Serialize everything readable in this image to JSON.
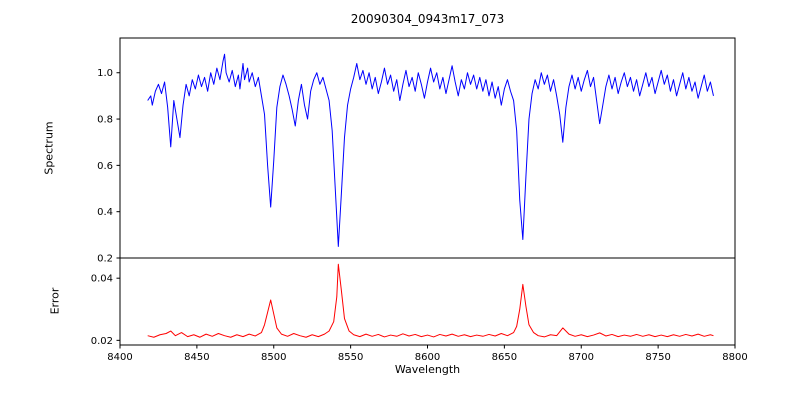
{
  "figure": {
    "title": "20090304_0943m17_073"
  },
  "chart_data": {
    "type": "line",
    "title": "20090304_0943m17_073",
    "xlabel": "Wavelength",
    "xlim": [
      8400,
      8800
    ],
    "xticks": [
      8400,
      8450,
      8500,
      8550,
      8600,
      8650,
      8700,
      8750,
      8800
    ],
    "xtick_labels": [
      "8400",
      "8450",
      "8500",
      "8550",
      "8600",
      "8650",
      "8700",
      "8750",
      "8800"
    ],
    "grid": false,
    "legend": "none",
    "subplots": [
      {
        "name": "spectrum",
        "ylabel": "Spectrum",
        "ylim": [
          0.2,
          1.15
        ],
        "yticks": [
          0.2,
          0.4,
          0.6,
          0.8,
          1.0
        ],
        "ytick_labels": [
          "0.2",
          "0.4",
          "0.6",
          "0.8",
          "1.0"
        ],
        "color": "#0000ff",
        "notes": "normalized stellar spectrum, continuum ~0.95, deep absorption lines (Ca II triplet) near 8498, 8542, 8662",
        "points": [
          [
            8418,
            0.88
          ],
          [
            8420,
            0.9
          ],
          [
            8421,
            0.86
          ],
          [
            8423,
            0.92
          ],
          [
            8425,
            0.95
          ],
          [
            8427,
            0.91
          ],
          [
            8429,
            0.96
          ],
          [
            8431,
            0.85
          ],
          [
            8433,
            0.68
          ],
          [
            8435,
            0.88
          ],
          [
            8437,
            0.8
          ],
          [
            8439,
            0.72
          ],
          [
            8441,
            0.86
          ],
          [
            8443,
            0.95
          ],
          [
            8445,
            0.9
          ],
          [
            8447,
            0.97
          ],
          [
            8449,
            0.93
          ],
          [
            8451,
            0.99
          ],
          [
            8453,
            0.94
          ],
          [
            8455,
            0.98
          ],
          [
            8457,
            0.92
          ],
          [
            8459,
            1.0
          ],
          [
            8461,
            0.95
          ],
          [
            8463,
            1.02
          ],
          [
            8465,
            0.97
          ],
          [
            8467,
            1.05
          ],
          [
            8468,
            1.08
          ],
          [
            8469,
            1.0
          ],
          [
            8471,
            0.96
          ],
          [
            8473,
            1.01
          ],
          [
            8475,
            0.94
          ],
          [
            8477,
            0.99
          ],
          [
            8478,
            0.93
          ],
          [
            8480,
            1.04
          ],
          [
            8481,
            0.97
          ],
          [
            8483,
            1.02
          ],
          [
            8484,
            0.96
          ],
          [
            8486,
            1.0
          ],
          [
            8488,
            0.94
          ],
          [
            8490,
            0.98
          ],
          [
            8492,
            0.9
          ],
          [
            8494,
            0.82
          ],
          [
            8496,
            0.6
          ],
          [
            8498,
            0.42
          ],
          [
            8500,
            0.62
          ],
          [
            8502,
            0.85
          ],
          [
            8504,
            0.94
          ],
          [
            8506,
            0.99
          ],
          [
            8508,
            0.95
          ],
          [
            8510,
            0.9
          ],
          [
            8512,
            0.84
          ],
          [
            8514,
            0.77
          ],
          [
            8516,
            0.88
          ],
          [
            8518,
            0.95
          ],
          [
            8520,
            0.86
          ],
          [
            8522,
            0.8
          ],
          [
            8524,
            0.92
          ],
          [
            8526,
            0.97
          ],
          [
            8528,
            1.0
          ],
          [
            8530,
            0.95
          ],
          [
            8532,
            0.98
          ],
          [
            8534,
            0.93
          ],
          [
            8536,
            0.88
          ],
          [
            8538,
            0.75
          ],
          [
            8540,
            0.5
          ],
          [
            8542,
            0.25
          ],
          [
            8544,
            0.48
          ],
          [
            8546,
            0.72
          ],
          [
            8548,
            0.86
          ],
          [
            8550,
            0.93
          ],
          [
            8552,
            0.98
          ],
          [
            8554,
            1.04
          ],
          [
            8556,
            0.97
          ],
          [
            8558,
            1.01
          ],
          [
            8560,
            0.95
          ],
          [
            8562,
            1.0
          ],
          [
            8564,
            0.93
          ],
          [
            8566,
            0.98
          ],
          [
            8568,
            0.91
          ],
          [
            8570,
            0.96
          ],
          [
            8572,
            1.02
          ],
          [
            8574,
            0.95
          ],
          [
            8576,
            0.99
          ],
          [
            8578,
            0.92
          ],
          [
            8580,
            0.97
          ],
          [
            8582,
            0.88
          ],
          [
            8584,
            0.95
          ],
          [
            8586,
            1.01
          ],
          [
            8588,
            0.94
          ],
          [
            8590,
            0.98
          ],
          [
            8592,
            0.92
          ],
          [
            8594,
            1.0
          ],
          [
            8596,
            0.95
          ],
          [
            8598,
            0.89
          ],
          [
            8600,
            0.96
          ],
          [
            8602,
            1.02
          ],
          [
            8604,
            0.96
          ],
          [
            8606,
            1.0
          ],
          [
            8608,
            0.93
          ],
          [
            8610,
            0.98
          ],
          [
            8612,
            0.91
          ],
          [
            8614,
            0.97
          ],
          [
            8616,
            1.03
          ],
          [
            8618,
            0.96
          ],
          [
            8620,
            0.9
          ],
          [
            8622,
            0.97
          ],
          [
            8624,
            0.93
          ],
          [
            8626,
            1.0
          ],
          [
            8628,
            0.95
          ],
          [
            8630,
            0.99
          ],
          [
            8632,
            0.93
          ],
          [
            8634,
            0.98
          ],
          [
            8636,
            0.92
          ],
          [
            8638,
            0.97
          ],
          [
            8640,
            0.9
          ],
          [
            8642,
            0.96
          ],
          [
            8644,
            0.89
          ],
          [
            8646,
            0.94
          ],
          [
            8648,
            0.86
          ],
          [
            8650,
            0.93
          ],
          [
            8652,
            0.97
          ],
          [
            8654,
            0.92
          ],
          [
            8656,
            0.88
          ],
          [
            8658,
            0.75
          ],
          [
            8660,
            0.45
          ],
          [
            8662,
            0.28
          ],
          [
            8664,
            0.55
          ],
          [
            8666,
            0.8
          ],
          [
            8668,
            0.91
          ],
          [
            8670,
            0.97
          ],
          [
            8672,
            0.93
          ],
          [
            8674,
            1.0
          ],
          [
            8676,
            0.95
          ],
          [
            8678,
            0.99
          ],
          [
            8680,
            0.92
          ],
          [
            8682,
            0.97
          ],
          [
            8684,
            0.9
          ],
          [
            8686,
            0.82
          ],
          [
            8688,
            0.7
          ],
          [
            8690,
            0.85
          ],
          [
            8692,
            0.94
          ],
          [
            8694,
            0.99
          ],
          [
            8696,
            0.93
          ],
          [
            8698,
            0.98
          ],
          [
            8700,
            0.92
          ],
          [
            8702,
            0.97
          ],
          [
            8704,
            1.01
          ],
          [
            8706,
            0.94
          ],
          [
            8708,
            0.98
          ],
          [
            8710,
            0.88
          ],
          [
            8712,
            0.78
          ],
          [
            8714,
            0.86
          ],
          [
            8716,
            0.94
          ],
          [
            8718,
            0.99
          ],
          [
            8720,
            0.93
          ],
          [
            8722,
            0.98
          ],
          [
            8724,
            0.91
          ],
          [
            8726,
            0.96
          ],
          [
            8728,
            1.0
          ],
          [
            8730,
            0.94
          ],
          [
            8732,
            0.98
          ],
          [
            8734,
            0.92
          ],
          [
            8736,
            0.97
          ],
          [
            8738,
            0.9
          ],
          [
            8740,
            0.95
          ],
          [
            8742,
            1.0
          ],
          [
            8744,
            0.94
          ],
          [
            8746,
            0.98
          ],
          [
            8748,
            0.91
          ],
          [
            8750,
            0.96
          ],
          [
            8752,
            1.01
          ],
          [
            8754,
            0.95
          ],
          [
            8756,
            0.99
          ],
          [
            8758,
            0.92
          ],
          [
            8760,
            0.97
          ],
          [
            8762,
            0.9
          ],
          [
            8764,
            0.95
          ],
          [
            8766,
            1.0
          ],
          [
            8768,
            0.93
          ],
          [
            8770,
            0.98
          ],
          [
            8772,
            0.92
          ],
          [
            8774,
            0.96
          ],
          [
            8776,
            0.89
          ],
          [
            8778,
            0.94
          ],
          [
            8780,
            0.99
          ],
          [
            8782,
            0.92
          ],
          [
            8784,
            0.96
          ],
          [
            8786,
            0.9
          ]
        ]
      },
      {
        "name": "error",
        "ylabel": "Error",
        "ylim": [
          0.0185,
          0.0465
        ],
        "yticks": [
          0.02,
          0.04
        ],
        "ytick_labels": [
          "0.02",
          "0.04"
        ],
        "color": "#ff0000",
        "notes": "error spectrum, baseline ~0.021 with peaks at the absorption lines 8498 (~0.033), 8542 (~0.0445), 8662 (~0.038)",
        "points": [
          [
            8418,
            0.0215
          ],
          [
            8422,
            0.021
          ],
          [
            8426,
            0.0218
          ],
          [
            8430,
            0.0222
          ],
          [
            8433,
            0.023
          ],
          [
            8436,
            0.0215
          ],
          [
            8440,
            0.0225
          ],
          [
            8444,
            0.0212
          ],
          [
            8448,
            0.0218
          ],
          [
            8452,
            0.021
          ],
          [
            8456,
            0.022
          ],
          [
            8460,
            0.0213
          ],
          [
            8464,
            0.0222
          ],
          [
            8468,
            0.0215
          ],
          [
            8472,
            0.021
          ],
          [
            8476,
            0.0218
          ],
          [
            8480,
            0.0212
          ],
          [
            8484,
            0.022
          ],
          [
            8488,
            0.0214
          ],
          [
            8492,
            0.0225
          ],
          [
            8494,
            0.025
          ],
          [
            8496,
            0.029
          ],
          [
            8498,
            0.033
          ],
          [
            8500,
            0.0285
          ],
          [
            8502,
            0.024
          ],
          [
            8505,
            0.022
          ],
          [
            8509,
            0.0213
          ],
          [
            8513,
            0.0222
          ],
          [
            8517,
            0.0215
          ],
          [
            8521,
            0.021
          ],
          [
            8525,
            0.0218
          ],
          [
            8529,
            0.0212
          ],
          [
            8533,
            0.022
          ],
          [
            8536,
            0.023
          ],
          [
            8539,
            0.026
          ],
          [
            8541,
            0.034
          ],
          [
            8542,
            0.0445
          ],
          [
            8544,
            0.036
          ],
          [
            8546,
            0.027
          ],
          [
            8549,
            0.023
          ],
          [
            8552,
            0.0218
          ],
          [
            8556,
            0.0212
          ],
          [
            8560,
            0.022
          ],
          [
            8564,
            0.0213
          ],
          [
            8568,
            0.0219
          ],
          [
            8572,
            0.0211
          ],
          [
            8576,
            0.0217
          ],
          [
            8580,
            0.0213
          ],
          [
            8584,
            0.0221
          ],
          [
            8588,
            0.0214
          ],
          [
            8592,
            0.0219
          ],
          [
            8596,
            0.0212
          ],
          [
            8600,
            0.0217
          ],
          [
            8604,
            0.0211
          ],
          [
            8608,
            0.0219
          ],
          [
            8612,
            0.0214
          ],
          [
            8616,
            0.022
          ],
          [
            8620,
            0.0213
          ],
          [
            8624,
            0.0218
          ],
          [
            8628,
            0.0212
          ],
          [
            8632,
            0.0217
          ],
          [
            8636,
            0.0213
          ],
          [
            8640,
            0.0219
          ],
          [
            8644,
            0.0214
          ],
          [
            8648,
            0.0222
          ],
          [
            8652,
            0.0215
          ],
          [
            8656,
            0.0225
          ],
          [
            8658,
            0.0245
          ],
          [
            8660,
            0.03
          ],
          [
            8662,
            0.038
          ],
          [
            8664,
            0.031
          ],
          [
            8666,
            0.025
          ],
          [
            8669,
            0.0225
          ],
          [
            8672,
            0.0215
          ],
          [
            8676,
            0.0211
          ],
          [
            8680,
            0.0218
          ],
          [
            8684,
            0.0215
          ],
          [
            8688,
            0.024
          ],
          [
            8692,
            0.022
          ],
          [
            8696,
            0.0213
          ],
          [
            8700,
            0.0218
          ],
          [
            8704,
            0.0212
          ],
          [
            8708,
            0.0217
          ],
          [
            8712,
            0.0224
          ],
          [
            8716,
            0.0214
          ],
          [
            8720,
            0.0219
          ],
          [
            8724,
            0.0212
          ],
          [
            8728,
            0.0217
          ],
          [
            8732,
            0.0213
          ],
          [
            8736,
            0.0219
          ],
          [
            8740,
            0.0213
          ],
          [
            8744,
            0.0218
          ],
          [
            8748,
            0.0212
          ],
          [
            8752,
            0.0217
          ],
          [
            8756,
            0.0212
          ],
          [
            8760,
            0.0218
          ],
          [
            8764,
            0.0213
          ],
          [
            8768,
            0.0219
          ],
          [
            8772,
            0.0214
          ],
          [
            8776,
            0.022
          ],
          [
            8780,
            0.0213
          ],
          [
            8784,
            0.0218
          ],
          [
            8786,
            0.0215
          ]
        ]
      }
    ]
  }
}
